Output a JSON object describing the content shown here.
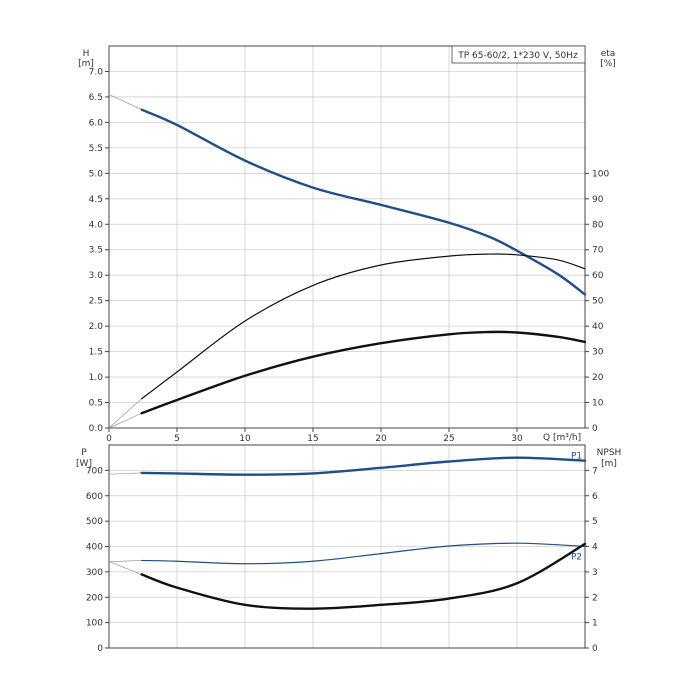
{
  "chart_data": [
    {
      "type": "line",
      "title": "TP 65-60/2, 1*230 V, 50Hz",
      "xlabel": "Q [m³/h]",
      "x_ticks": [
        "0",
        "5",
        "10",
        "15",
        "20",
        "25",
        "30"
      ],
      "xlim": [
        0,
        35
      ],
      "y_left": {
        "label_line1": "H",
        "label_line2": "[m]",
        "lim": [
          0,
          7.5
        ],
        "ticks": [
          "0.0",
          "0.5",
          "1.0",
          "1.5",
          "2.0",
          "2.5",
          "3.0",
          "3.5",
          "4.0",
          "4.5",
          "5.0",
          "5.5",
          "6.0",
          "6.5",
          "7.0"
        ]
      },
      "y_right": {
        "label_line1": "eta",
        "label_line2": "[%]",
        "lim": [
          0,
          150
        ],
        "ticks": [
          "0",
          "10",
          "20",
          "30",
          "40",
          "50",
          "60",
          "70",
          "80",
          "90",
          "100"
        ]
      },
      "grid": true,
      "series": [
        {
          "axis": "left",
          "color": "#1f4e89",
          "weight": "heavy",
          "extension_x": [
            0,
            2.4
          ],
          "extension_y": [
            6.55,
            6.25
          ],
          "x": [
            2.4,
            5,
            10,
            15,
            20,
            25,
            28,
            30,
            33,
            35
          ],
          "y": [
            6.25,
            5.95,
            5.25,
            4.72,
            4.38,
            4.03,
            3.75,
            3.48,
            3.02,
            2.62
          ]
        },
        {
          "axis": "right",
          "color": "#111111",
          "weight": "thin",
          "extension_x": [
            0,
            2.4
          ],
          "extension_y": [
            0,
            11.5
          ],
          "x": [
            2.4,
            5,
            10,
            15,
            20,
            25,
            28,
            30,
            33,
            35
          ],
          "y": [
            11.5,
            22,
            42,
            56,
            64,
            67.5,
            68.3,
            68,
            66,
            62.5
          ]
        },
        {
          "axis": "right",
          "color": "#111111",
          "weight": "heavy",
          "extension_x": [
            0,
            2.4
          ],
          "extension_y": [
            0,
            5.8
          ],
          "x": [
            2.4,
            5,
            10,
            15,
            20,
            25,
            28,
            30,
            33,
            35
          ],
          "y": [
            5.8,
            11,
            20.5,
            28,
            33.3,
            36.8,
            37.7,
            37.5,
            35.8,
            33.8
          ]
        }
      ]
    },
    {
      "type": "line",
      "xlim": [
        0,
        35
      ],
      "y_left": {
        "label_line1": "P",
        "label_line2": "[W]",
        "lim": [
          0,
          800
        ],
        "ticks": [
          "0",
          "100",
          "200",
          "300",
          "400",
          "500",
          "600",
          "700"
        ]
      },
      "y_right": {
        "label_line1": "NPSH",
        "label_line2": "[m]",
        "lim": [
          0,
          8
        ],
        "ticks": [
          "0",
          "1",
          "2",
          "3",
          "4",
          "5",
          "6",
          "7"
        ]
      },
      "grid": true,
      "series": [
        {
          "name": "P1",
          "axis": "left",
          "color": "#1f4e89",
          "weight": "heavy",
          "extension_x": [
            0,
            2.4
          ],
          "extension_y": [
            685,
            690
          ],
          "x": [
            2.4,
            5,
            10,
            15,
            20,
            25,
            30,
            35
          ],
          "y": [
            690,
            688,
            683,
            688,
            710,
            735,
            750,
            738
          ]
        },
        {
          "name": "P2",
          "axis": "left",
          "color": "#1f4e89",
          "weight": "thin",
          "extension_x": [
            0,
            2.4
          ],
          "extension_y": [
            340,
            345
          ],
          "x": [
            2.4,
            5,
            10,
            15,
            20,
            25,
            30,
            35
          ],
          "y": [
            345,
            342,
            332,
            342,
            372,
            402,
            413,
            400
          ]
        },
        {
          "axis": "right",
          "color": "#111111",
          "weight": "heavy",
          "extension_x": [
            0,
            2.4
          ],
          "extension_y": [
            3.4,
            2.9
          ],
          "x": [
            2.4,
            5,
            10,
            15,
            20,
            25,
            30,
            35
          ],
          "y": [
            2.9,
            2.38,
            1.7,
            1.55,
            1.7,
            1.95,
            2.55,
            4.1
          ]
        }
      ]
    }
  ]
}
